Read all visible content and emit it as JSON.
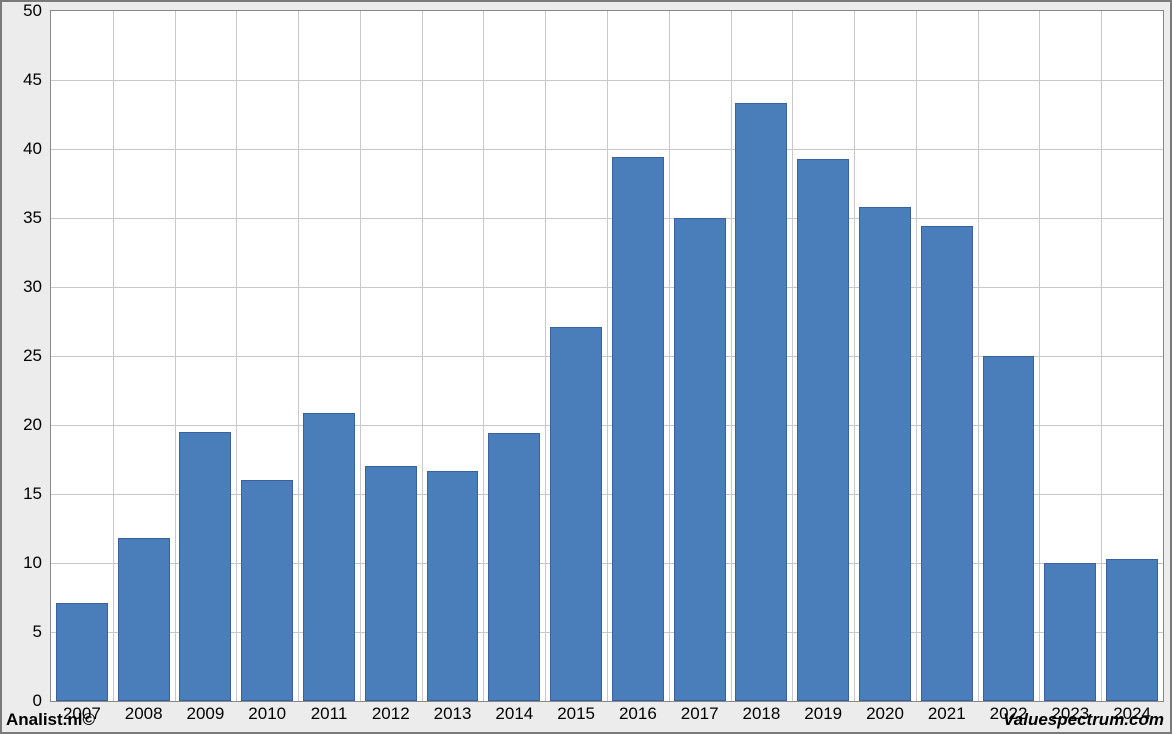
{
  "chart": {
    "type": "bar",
    "background_color": "#ffffff",
    "outer_background": "#ececec",
    "border_color": "#888888",
    "grid_color": "#c8c8c8",
    "bar_fill": "#4a7ebb",
    "bar_border": "#3a60a0",
    "bar_width_ratio": 0.84,
    "y_axis": {
      "min": 0,
      "max": 50,
      "step": 5,
      "ticks": [
        "0",
        "5",
        "10",
        "15",
        "20",
        "25",
        "30",
        "35",
        "40",
        "45",
        "50"
      ],
      "label_fontsize": 17,
      "label_color": "#000000"
    },
    "x_axis": {
      "categories": [
        "2007",
        "2008",
        "2009",
        "2010",
        "2011",
        "2012",
        "2013",
        "2014",
        "2015",
        "2016",
        "2017",
        "2018",
        "2019",
        "2020",
        "2021",
        "2022",
        "2023",
        "2024"
      ],
      "label_fontsize": 17,
      "label_color": "#000000"
    },
    "values": [
      7.1,
      11.8,
      19.5,
      16.0,
      20.9,
      17.0,
      16.7,
      19.4,
      27.1,
      39.4,
      35.0,
      43.3,
      39.3,
      35.8,
      34.4,
      25.0,
      10.0,
      10.3
    ]
  },
  "footer": {
    "left": "Analist.nl©",
    "right": "Valuespectrum.com"
  }
}
